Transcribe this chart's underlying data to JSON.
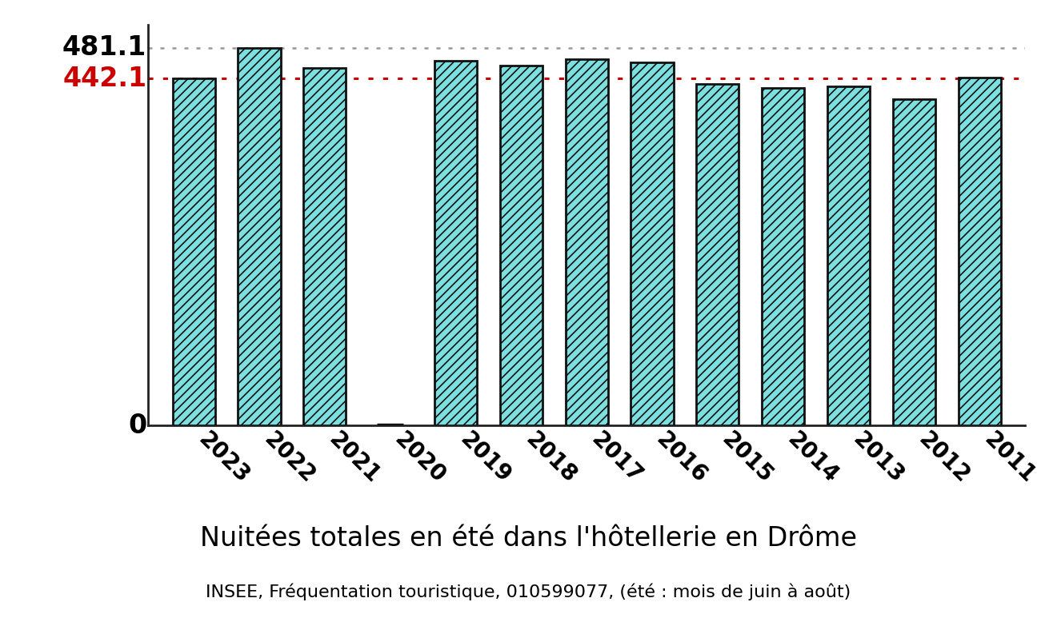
{
  "categories": [
    "2023",
    "2022",
    "2021",
    "2020",
    "2019",
    "2018",
    "2017",
    "2016",
    "2015",
    "2014",
    "2013",
    "2012",
    "2011"
  ],
  "values": [
    442.0,
    481.1,
    455.0,
    0.0,
    465.0,
    458.5,
    467.0,
    463.0,
    435.0,
    430.0,
    431.5,
    416.0,
    443.0
  ],
  "mean_line": 442.1,
  "max_line": 481.1,
  "ymin": 0,
  "ymax": 510,
  "bar_fill_color": "#7de0e0",
  "bar_edge_color": "#111111",
  "hatch_color": "#18b0b0",
  "mean_line_color": "#cc0000",
  "max_line_color": "#999999",
  "title": "Nuitées totales en été dans l'hôtellerie en Drôme",
  "subtitle": "INSEE, Fréquentation touristique, 010599077, (été : mois de juin à août)",
  "background_color": "#ffffff",
  "title_fontsize": 24,
  "subtitle_fontsize": 16,
  "tick_fontsize": 20,
  "ref_label_fontsize": 24,
  "zero_label_fontsize": 24,
  "bar_width": 0.65
}
